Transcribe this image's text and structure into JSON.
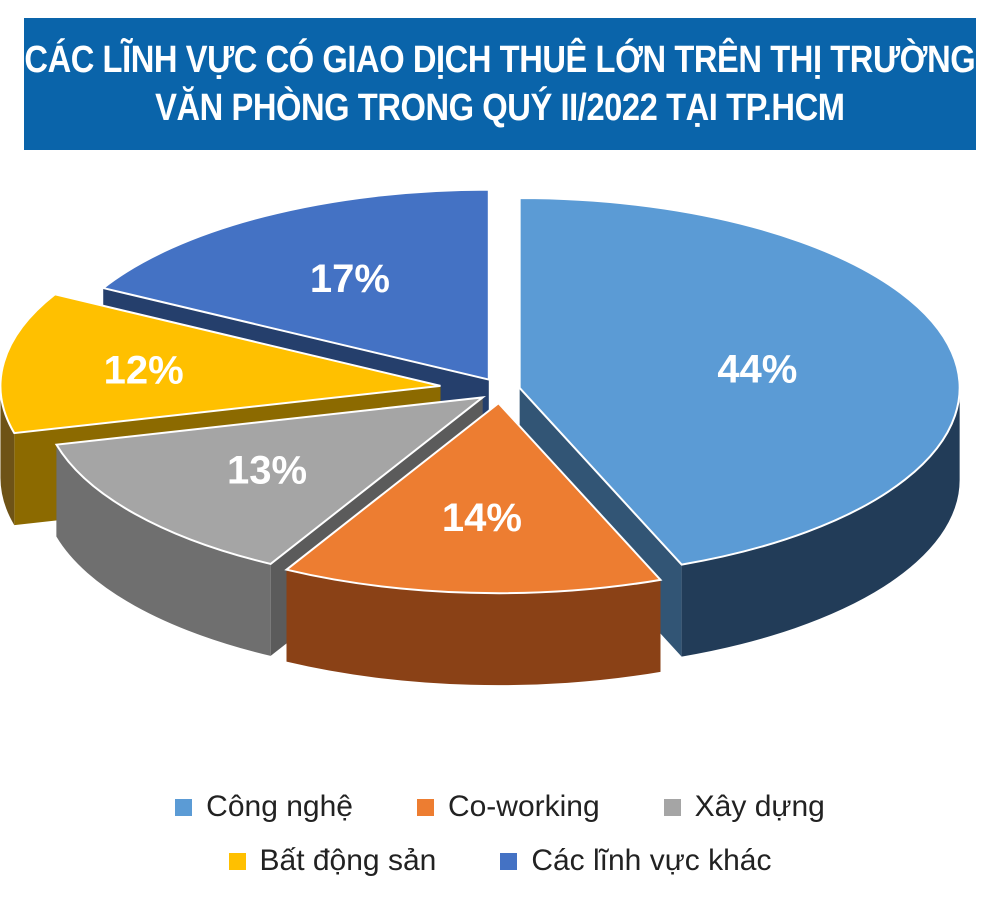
{
  "title": {
    "line1": "CÁC LĨNH VỰC CÓ GIAO DỊCH THUÊ LỚN TRÊN THỊ TRƯỜNG",
    "line2": "VĂN PHÒNG TRONG QUÝ II/2022 TẠI TP.HCM"
  },
  "colors": {
    "title_bg": "#0a64aa",
    "label_text": "#ffffff"
  },
  "chart_data": {
    "type": "pie",
    "style": "3d-exploded",
    "title": "CÁC LĨNH VỰC CÓ GIAO DỊCH THUÊ LỚN TRÊN THỊ TRƯỜNG VĂN PHÒNG TRONG QUÝ II/2022 TẠI TP.HCM",
    "unit": "%",
    "legend_position": "bottom",
    "slices": [
      {
        "name": "Công nghệ",
        "value": 44,
        "label": "44%",
        "color": "#5b9bd5",
        "side_color": "#223c58"
      },
      {
        "name": "Co-working",
        "value": 14,
        "label": "14%",
        "color": "#ed7d31",
        "side_color": "#8a4116"
      },
      {
        "name": "Xây dựng",
        "value": 13,
        "label": "13%",
        "color": "#a5a5a5",
        "side_color": "#6f6f6f"
      },
      {
        "name": "Bất động sản",
        "value": 12,
        "label": "12%",
        "color": "#ffc000",
        "side_color": "#6e5316"
      },
      {
        "name": "Các lĩnh vực khác",
        "value": 17,
        "label": "17%",
        "color": "#4472c4",
        "side_color": "#1e325a"
      }
    ]
  },
  "legend": {
    "row1": [
      "Công nghệ",
      "Co-working",
      "Xây dựng"
    ],
    "row2": [
      "Bất động sản",
      "Các lĩnh vực khác"
    ]
  }
}
